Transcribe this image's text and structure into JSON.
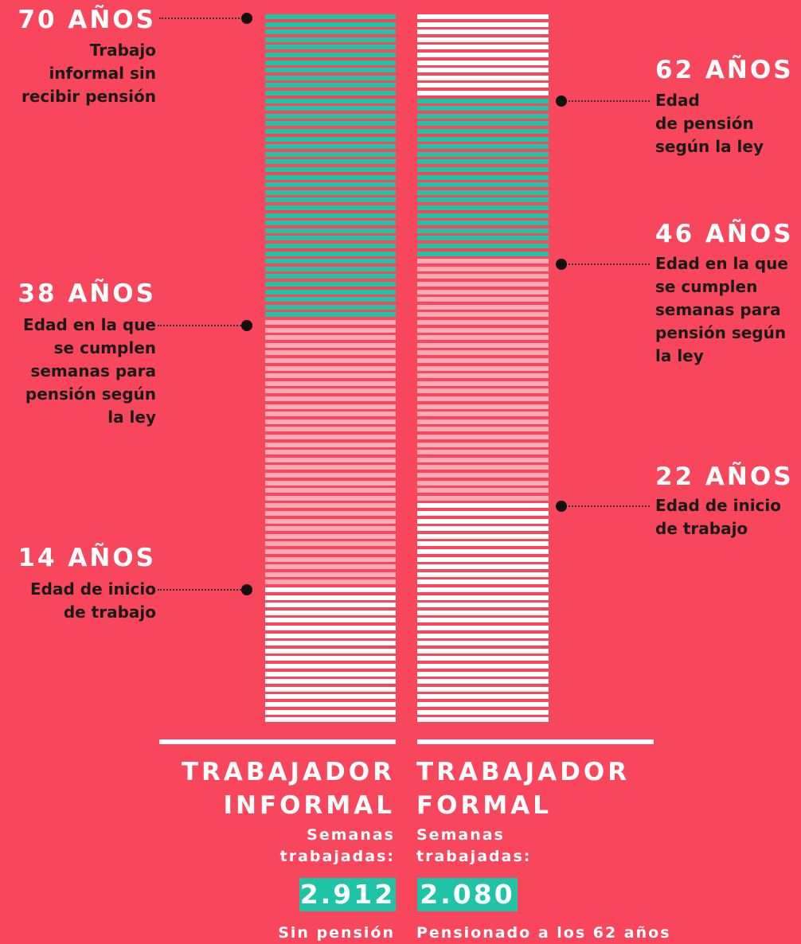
{
  "columns": [
    {
      "markers": [
        {
          "title": "70 AÑOS",
          "lines": [
            "Trabajo",
            "informal sin",
            "recibir pensión"
          ]
        },
        {
          "title": "38 AÑOS",
          "lines": [
            "Edad en la que",
            "se cumplen",
            "semanas para",
            "pensión según",
            "la ley"
          ]
        },
        {
          "title": "14 AÑOS",
          "lines": [
            "Edad de inicio",
            "de trabajo"
          ]
        }
      ],
      "heading": [
        "TRABAJADOR",
        "INFORMAL"
      ],
      "weeks_label": [
        "Semanas",
        "trabajadas:"
      ],
      "weeks": "2.912",
      "note": "Sin pensión"
    },
    {
      "markers": [
        {
          "title": "62 AÑOS",
          "lines": [
            "Edad",
            "de pensión",
            "según la ley"
          ]
        },
        {
          "title": "46 AÑOS",
          "lines": [
            "Edad en la que",
            "se cumplen",
            "semanas para",
            "pensión según",
            "la ley"
          ]
        },
        {
          "title": "22 AÑOS",
          "lines": [
            "Edad de inicio",
            "de trabajo"
          ]
        }
      ],
      "heading": [
        "TRABAJADOR",
        "FORMAL"
      ],
      "weeks_label": [
        "Semanas",
        "trabajadas:"
      ],
      "weeks": "2.080",
      "note": "Pensionado a los 62 años"
    }
  ]
}
